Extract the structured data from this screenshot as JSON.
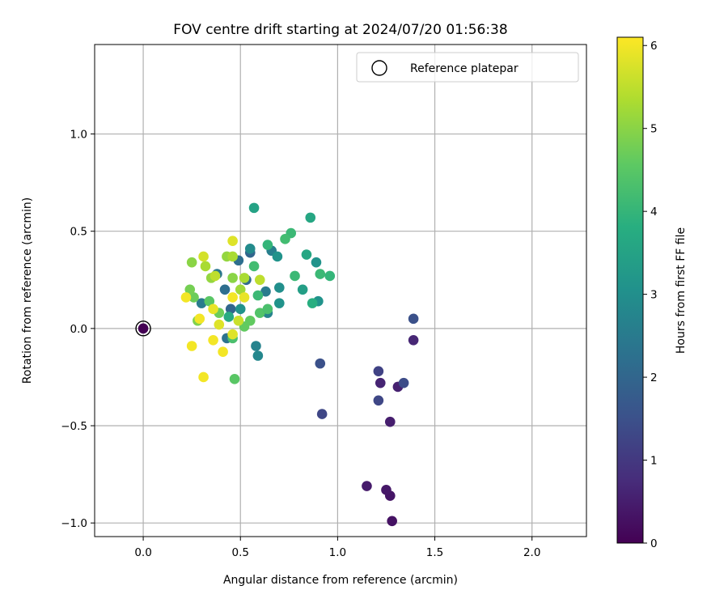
{
  "chart_data": {
    "type": "scatter",
    "title": "FOV centre drift starting at 2024/07/20 01:56:38",
    "xlabel": "Angular distance from reference (arcmin)",
    "ylabel": "Rotation from reference (arcmin)",
    "xlim": [
      -0.25,
      2.28
    ],
    "ylim": [
      -1.07,
      1.46
    ],
    "xticks": [
      0.0,
      0.5,
      1.0,
      1.5,
      2.0
    ],
    "xtick_labels": [
      "0.0",
      "0.5",
      "1.0",
      "1.5",
      "2.0"
    ],
    "yticks": [
      -1.0,
      -0.5,
      0.0,
      0.5,
      1.0
    ],
    "ytick_labels": [
      "−1.0",
      "−0.5",
      "0.0",
      "0.5",
      "1.0"
    ],
    "grid": true,
    "legend": {
      "placement": "top-right",
      "entries": [
        "Reference platepar"
      ]
    },
    "reference_point": {
      "x": 0.0,
      "y": 0.0
    },
    "colorbar": {
      "label": "Hours from first FF file",
      "colormap": "viridis",
      "range": [
        0,
        6.1
      ],
      "ticks": [
        0,
        1,
        2,
        3,
        4,
        5,
        6
      ],
      "tick_labels": [
        "0",
        "1",
        "2",
        "3",
        "4",
        "5",
        "6"
      ]
    },
    "points": [
      {
        "x": 0.0,
        "y": 0.0,
        "c": 0.0
      },
      {
        "x": 1.28,
        "y": -0.99,
        "c": 0.3
      },
      {
        "x": 1.27,
        "y": -0.86,
        "c": 0.35
      },
      {
        "x": 1.25,
        "y": -0.83,
        "c": 0.4
      },
      {
        "x": 1.15,
        "y": -0.81,
        "c": 0.45
      },
      {
        "x": 1.27,
        "y": -0.48,
        "c": 0.5
      },
      {
        "x": 1.31,
        "y": -0.3,
        "c": 0.55
      },
      {
        "x": 1.22,
        "y": -0.28,
        "c": 0.6
      },
      {
        "x": 1.39,
        "y": -0.06,
        "c": 0.65
      },
      {
        "x": 1.21,
        "y": -0.22,
        "c": 1.2
      },
      {
        "x": 1.21,
        "y": -0.37,
        "c": 1.3
      },
      {
        "x": 1.34,
        "y": -0.28,
        "c": 1.4
      },
      {
        "x": 1.39,
        "y": 0.05,
        "c": 1.5
      },
      {
        "x": 0.92,
        "y": -0.44,
        "c": 1.3
      },
      {
        "x": 0.91,
        "y": -0.18,
        "c": 1.5
      },
      {
        "x": 0.55,
        "y": 0.39,
        "c": 2.0
      },
      {
        "x": 0.53,
        "y": 0.25,
        "c": 2.1
      },
      {
        "x": 0.49,
        "y": 0.35,
        "c": 2.2
      },
      {
        "x": 0.45,
        "y": 0.1,
        "c": 2.0
      },
      {
        "x": 0.43,
        "y": -0.05,
        "c": 2.3
      },
      {
        "x": 0.42,
        "y": 0.2,
        "c": 2.2
      },
      {
        "x": 0.38,
        "y": 0.28,
        "c": 2.4
      },
      {
        "x": 0.3,
        "y": 0.13,
        "c": 2.5
      },
      {
        "x": 0.58,
        "y": -0.09,
        "c": 2.7
      },
      {
        "x": 0.59,
        "y": -0.14,
        "c": 2.8
      },
      {
        "x": 0.66,
        "y": 0.4,
        "c": 2.6
      },
      {
        "x": 0.55,
        "y": 0.41,
        "c": 2.9
      },
      {
        "x": 0.63,
        "y": 0.19,
        "c": 2.5
      },
      {
        "x": 0.64,
        "y": 0.08,
        "c": 2.7
      },
      {
        "x": 0.7,
        "y": 0.21,
        "c": 3.0
      },
      {
        "x": 0.7,
        "y": 0.13,
        "c": 3.1
      },
      {
        "x": 0.69,
        "y": 0.37,
        "c": 3.1
      },
      {
        "x": 0.89,
        "y": 0.34,
        "c": 3.1
      },
      {
        "x": 0.9,
        "y": 0.14,
        "c": 3.1
      },
      {
        "x": 0.57,
        "y": 0.62,
        "c": 3.5
      },
      {
        "x": 0.86,
        "y": 0.57,
        "c": 3.6
      },
      {
        "x": 0.84,
        "y": 0.38,
        "c": 3.6
      },
      {
        "x": 0.82,
        "y": 0.2,
        "c": 3.4
      },
      {
        "x": 0.87,
        "y": 0.13,
        "c": 3.8
      },
      {
        "x": 0.96,
        "y": 0.27,
        "c": 4.0
      },
      {
        "x": 0.91,
        "y": 0.28,
        "c": 4.1
      },
      {
        "x": 0.78,
        "y": 0.27,
        "c": 4.1
      },
      {
        "x": 0.76,
        "y": 0.49,
        "c": 4.1
      },
      {
        "x": 0.73,
        "y": 0.46,
        "c": 4.2
      },
      {
        "x": 0.64,
        "y": 0.43,
        "c": 4.0
      },
      {
        "x": 0.57,
        "y": 0.32,
        "c": 4.2
      },
      {
        "x": 0.59,
        "y": 0.17,
        "c": 4.1
      },
      {
        "x": 0.6,
        "y": 0.08,
        "c": 4.4
      },
      {
        "x": 0.64,
        "y": 0.1,
        "c": 4.3
      },
      {
        "x": 0.5,
        "y": 0.1,
        "c": 3.1
      },
      {
        "x": 0.52,
        "y": 0.01,
        "c": 4.6
      },
      {
        "x": 0.55,
        "y": 0.04,
        "c": 4.6
      },
      {
        "x": 0.46,
        "y": -0.05,
        "c": 4.3
      },
      {
        "x": 0.47,
        "y": -0.26,
        "c": 4.5
      },
      {
        "x": 0.44,
        "y": 0.06,
        "c": 3.7
      },
      {
        "x": 0.39,
        "y": 0.08,
        "c": 4.7
      },
      {
        "x": 0.34,
        "y": 0.14,
        "c": 4.5
      },
      {
        "x": 0.28,
        "y": 0.04,
        "c": 4.9
      },
      {
        "x": 0.26,
        "y": 0.16,
        "c": 4.7
      },
      {
        "x": 0.24,
        "y": 0.2,
        "c": 4.8
      },
      {
        "x": 0.25,
        "y": 0.34,
        "c": 5.0
      },
      {
        "x": 0.35,
        "y": 0.26,
        "c": 5.1
      },
      {
        "x": 0.37,
        "y": 0.27,
        "c": 5.5
      },
      {
        "x": 0.32,
        "y": 0.32,
        "c": 5.3
      },
      {
        "x": 0.31,
        "y": 0.37,
        "c": 5.7
      },
      {
        "x": 0.43,
        "y": 0.37,
        "c": 5.1
      },
      {
        "x": 0.46,
        "y": 0.37,
        "c": 5.3
      },
      {
        "x": 0.46,
        "y": 0.45,
        "c": 5.8
      },
      {
        "x": 0.5,
        "y": 0.2,
        "c": 5.2
      },
      {
        "x": 0.52,
        "y": 0.26,
        "c": 5.3
      },
      {
        "x": 0.46,
        "y": 0.26,
        "c": 5.0
      },
      {
        "x": 0.6,
        "y": 0.25,
        "c": 5.5
      },
      {
        "x": 0.52,
        "y": 0.16,
        "c": 5.9
      },
      {
        "x": 0.46,
        "y": 0.16,
        "c": 6.0
      },
      {
        "x": 0.49,
        "y": 0.04,
        "c": 5.6
      },
      {
        "x": 0.46,
        "y": -0.03,
        "c": 5.8
      },
      {
        "x": 0.39,
        "y": 0.02,
        "c": 5.8
      },
      {
        "x": 0.36,
        "y": 0.1,
        "c": 5.9
      },
      {
        "x": 0.29,
        "y": 0.05,
        "c": 6.0
      },
      {
        "x": 0.22,
        "y": 0.16,
        "c": 6.0
      },
      {
        "x": 0.25,
        "y": -0.09,
        "c": 6.0
      },
      {
        "x": 0.36,
        "y": -0.06,
        "c": 6.0
      },
      {
        "x": 0.41,
        "y": -0.12,
        "c": 6.0
      },
      {
        "x": 0.31,
        "y": -0.25,
        "c": 6.0
      }
    ]
  }
}
